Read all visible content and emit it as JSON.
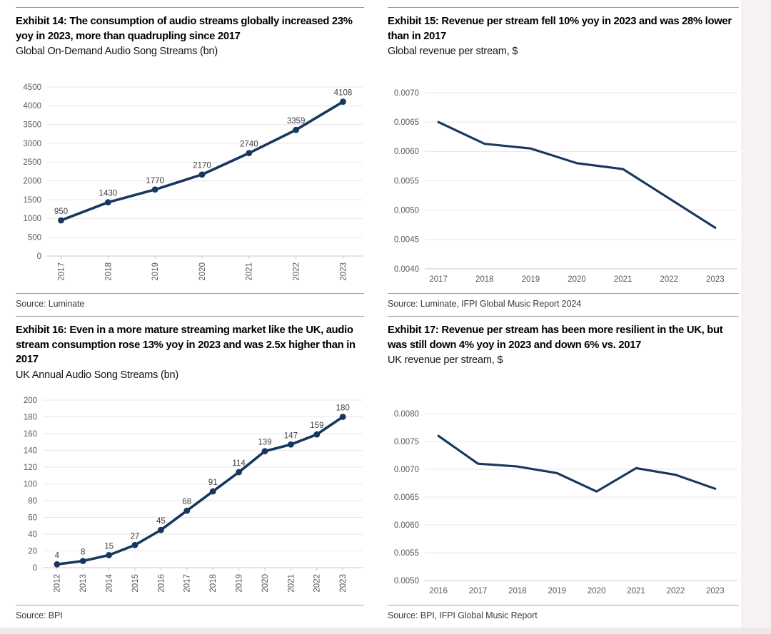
{
  "theme": {
    "line_color": "#17375e",
    "grid_color": "#e7e7e7",
    "axis_color": "#c9c9c9",
    "tick_text_color": "#595959",
    "data_label_color": "#3f3f3f",
    "rule_color": "#9b9b9b",
    "background": "#ffffff",
    "margin_strip_color": "#f5f2f1"
  },
  "chart_data": [
    {
      "type": "line",
      "title": "Exhibit 14: The consumption of audio streams globally increased 23% yoy in 2023, more than quadrupling since 2017",
      "subtitle": "Global On-Demand Audio Song Streams (bn)",
      "source": "Source: Luminate",
      "categories": [
        "2017",
        "2018",
        "2019",
        "2020",
        "2021",
        "2022",
        "2023"
      ],
      "values": [
        950,
        1430,
        1770,
        2170,
        2740,
        3359,
        4108
      ],
      "ylim": [
        0,
        4500
      ],
      "ytick_step": 500,
      "y_decimals": 0,
      "x_label_rotation": "vertical",
      "markers": true,
      "data_labels": true,
      "grid": true,
      "legend": "none",
      "line_color": "#17375e",
      "xlabel": "",
      "ylabel": ""
    },
    {
      "type": "line",
      "title": "Exhibit 15: Revenue per stream fell 10% yoy in 2023 and was 28% lower than in 2017",
      "subtitle": "Global revenue per stream, $",
      "source": "Source: Luminate, IFPI Global Music Report 2024",
      "categories": [
        "2017",
        "2018",
        "2019",
        "2020",
        "2021",
        "2022",
        "2023"
      ],
      "values": [
        0.0065,
        0.00613,
        0.00605,
        0.0058,
        0.0057,
        0.0052,
        0.0047
      ],
      "ylim": [
        0.004,
        0.007
      ],
      "ytick_step": 0.0005,
      "y_decimals": 4,
      "x_label_rotation": "horizontal",
      "markers": false,
      "data_labels": false,
      "grid": true,
      "legend": "none",
      "line_color": "#17375e",
      "xlabel": "",
      "ylabel": ""
    },
    {
      "type": "line",
      "title": "Exhibit 16: Even in a more mature streaming market like the UK, audio stream consumption rose 13% yoy in 2023 and was 2.5x higher than in 2017",
      "subtitle": "UK Annual Audio Song Streams (bn)",
      "source": "Source: BPI",
      "categories": [
        "2012",
        "2013",
        "2014",
        "2015",
        "2016",
        "2017",
        "2018",
        "2019",
        "2020",
        "2021",
        "2022",
        "2023"
      ],
      "values": [
        4,
        8,
        15,
        27,
        45,
        68,
        91,
        114,
        139,
        147,
        159,
        180
      ],
      "ylim": [
        0,
        200
      ],
      "ytick_step": 20,
      "y_decimals": 0,
      "x_label_rotation": "vertical",
      "markers": true,
      "data_labels": true,
      "grid": true,
      "legend": "none",
      "line_color": "#17375e",
      "xlabel": "",
      "ylabel": ""
    },
    {
      "type": "line",
      "title": "Exhibit 17: Revenue per stream has been more resilient in the UK, but was still down 4% yoy in 2023 and down 6% vs. 2017",
      "subtitle": "UK revenue per stream, $",
      "source": "Source: BPI, IFPI Global Music Report",
      "categories": [
        "2016",
        "2017",
        "2018",
        "2019",
        "2020",
        "2021",
        "2022",
        "2023"
      ],
      "values": [
        0.0076,
        0.0071,
        0.00705,
        0.00693,
        0.0066,
        0.00702,
        0.0069,
        0.00665
      ],
      "ylim": [
        0.005,
        0.008
      ],
      "ytick_step": 0.0005,
      "y_decimals": 4,
      "x_label_rotation": "horizontal",
      "markers": false,
      "data_labels": false,
      "grid": true,
      "legend": "none",
      "line_color": "#17375e",
      "xlabel": "",
      "ylabel": ""
    }
  ]
}
